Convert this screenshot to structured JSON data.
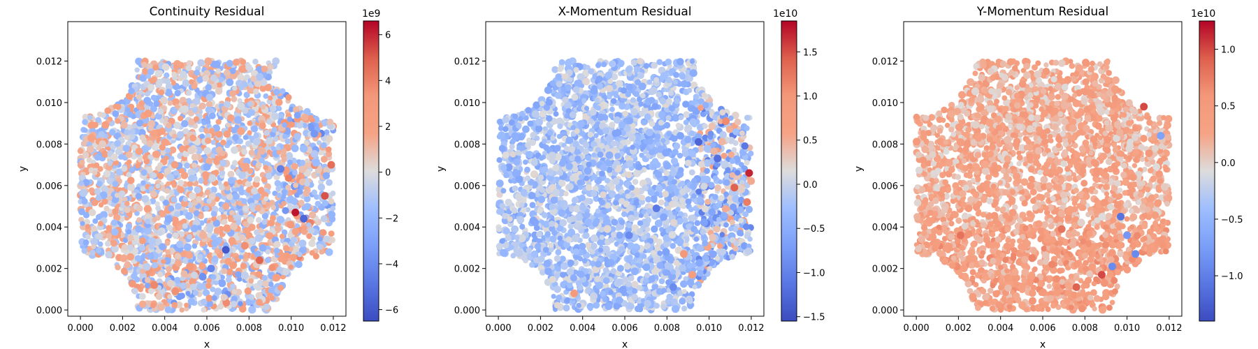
{
  "chart_data": [
    {
      "type": "scatter",
      "title": "Continuity Residual",
      "xlabel": "x",
      "ylabel": "y",
      "xlim": [
        -0.0006,
        0.0126
      ],
      "ylim": [
        -0.0003,
        0.0139
      ],
      "xticks": [
        0.0,
        0.002,
        0.004,
        0.006,
        0.008,
        0.01,
        0.012
      ],
      "xtick_labels": [
        "0.000",
        "0.002",
        "0.004",
        "0.006",
        "0.008",
        "0.010",
        "0.012"
      ],
      "yticks": [
        0.0,
        0.002,
        0.004,
        0.006,
        0.008,
        0.01,
        0.012
      ],
      "ytick_labels": [
        "0.000",
        "0.002",
        "0.004",
        "0.006",
        "0.008",
        "0.010",
        "0.012"
      ],
      "colormap": "coolwarm",
      "colorbar": {
        "vmin": -6.5,
        "vmax": 6.6,
        "offset_label": "1e9",
        "ticks": [
          -6,
          -4,
          -2,
          0,
          2,
          4,
          6
        ],
        "tick_labels": [
          "−6",
          "−4",
          "−2",
          "0",
          "2",
          "4",
          "6"
        ]
      },
      "domain": "square of side 0.012 with quarter-circle cutouts of radius ~0.0027 at the four corners",
      "field_pattern": "near-zero grey background; strongest positive/negative spots along the right and lower-right curved boundaries, reaching about +6.5e9 near (0.0102, 0.0047) and about -6e9 near (0.0069, 0.0029)",
      "points": [
        {
          "x": 0.0102,
          "y": 0.0047,
          "v": 6.3
        },
        {
          "x": 0.0069,
          "y": 0.0029,
          "v": -6.0
        },
        {
          "x": 0.0116,
          "y": 0.0055,
          "v": 5.2
        },
        {
          "x": 0.0106,
          "y": 0.0044,
          "v": -5.5
        },
        {
          "x": 0.0085,
          "y": 0.0024,
          "v": 4.8
        },
        {
          "x": 0.0062,
          "y": 0.002,
          "v": -4.2
        },
        {
          "x": 0.0119,
          "y": 0.007,
          "v": 4.5
        },
        {
          "x": 0.0095,
          "y": 0.0068,
          "v": -4.5
        },
        {
          "x": 0.0035,
          "y": 0.0012,
          "v": 3.8
        },
        {
          "x": 0.0045,
          "y": 0.0009,
          "v": 3.5
        },
        {
          "x": 0.0058,
          "y": 0.0016,
          "v": -3.8
        },
        {
          "x": 0.0111,
          "y": 0.0085,
          "v": -3.5
        },
        {
          "x": 0.0078,
          "y": 0.0031,
          "v": 3.6
        },
        {
          "x": 0.0052,
          "y": 0.0021,
          "v": 3.2
        }
      ]
    },
    {
      "type": "scatter",
      "title": "X-Momentum Residual",
      "xlabel": "x",
      "ylabel": "y",
      "xlim": [
        -0.0006,
        0.0126
      ],
      "ylim": [
        -0.0003,
        0.0139
      ],
      "xticks": [
        0.0,
        0.002,
        0.004,
        0.006,
        0.008,
        0.01,
        0.012
      ],
      "xtick_labels": [
        "0.000",
        "0.002",
        "0.004",
        "0.006",
        "0.008",
        "0.010",
        "0.012"
      ],
      "yticks": [
        0.0,
        0.002,
        0.004,
        0.006,
        0.008,
        0.01,
        0.012
      ],
      "ytick_labels": [
        "0.000",
        "0.002",
        "0.004",
        "0.006",
        "0.008",
        "0.010",
        "0.012"
      ],
      "colormap": "coolwarm",
      "colorbar": {
        "vmin": -1.55,
        "vmax": 1.85,
        "offset_label": "1e10",
        "ticks": [
          -1.5,
          -1.0,
          -0.5,
          0.0,
          0.5,
          1.0,
          1.5
        ],
        "tick_labels": [
          "−1.5",
          "−1.0",
          "−0.5",
          "0.0",
          "0.5",
          "1.0",
          "1.5"
        ]
      },
      "domain": "square of side 0.012 with quarter-circle cutouts of radius ~0.0027 at the four corners",
      "field_pattern": "mostly slightly negative (light blue) interior; strongest values near the right edge and the lower-right curved boundary, up to about +1.8e10 near (0.0119, 0.0066)",
      "points": [
        {
          "x": 0.0119,
          "y": 0.0066,
          "v": 1.7
        },
        {
          "x": 0.0112,
          "y": 0.0059,
          "v": 1.4
        },
        {
          "x": 0.0088,
          "y": 0.0027,
          "v": 1.0
        },
        {
          "x": 0.0095,
          "y": 0.0081,
          "v": -1.3
        },
        {
          "x": 0.0104,
          "y": 0.0073,
          "v": -1.2
        },
        {
          "x": 0.0118,
          "y": 0.0052,
          "v": 1.2
        },
        {
          "x": 0.0075,
          "y": 0.0049,
          "v": -1.1
        },
        {
          "x": 0.0036,
          "y": 0.0008,
          "v": 0.9
        },
        {
          "x": 0.0092,
          "y": 0.0017,
          "v": 0.8
        },
        {
          "x": 0.0083,
          "y": 0.0011,
          "v": -0.9
        },
        {
          "x": 0.0108,
          "y": 0.0091,
          "v": 1.1
        },
        {
          "x": 0.0062,
          "y": 0.0036,
          "v": -0.9
        }
      ]
    },
    {
      "type": "scatter",
      "title": "Y-Momentum Residual",
      "xlabel": "x",
      "ylabel": "y",
      "xlim": [
        -0.0006,
        0.0126
      ],
      "ylim": [
        -0.0003,
        0.0139
      ],
      "xticks": [
        0.0,
        0.002,
        0.004,
        0.006,
        0.008,
        0.01,
        0.012
      ],
      "xtick_labels": [
        "0.000",
        "0.002",
        "0.004",
        "0.006",
        "0.008",
        "0.010",
        "0.012"
      ],
      "yticks": [
        0.0,
        0.002,
        0.004,
        0.006,
        0.008,
        0.01,
        0.012
      ],
      "ytick_labels": [
        "0.000",
        "0.002",
        "0.004",
        "0.006",
        "0.008",
        "0.010",
        "0.012"
      ],
      "colormap": "coolwarm",
      "colorbar": {
        "vmin": -1.4,
        "vmax": 1.25,
        "offset_label": "1e10",
        "ticks": [
          -1.0,
          -0.5,
          0.0,
          0.5,
          1.0
        ],
        "tick_labels": [
          "−1.0",
          "−0.5",
          "0.0",
          "0.5",
          "1.0"
        ]
      },
      "domain": "square of side 0.012 with quarter-circle cutouts of radius ~0.0027 at the four corners",
      "field_pattern": "mostly slightly positive (light salmon) interior; positive band along the lower boundary reaching about +1e10 near (0.0088, 0.0017) and (0.0108, 0.0098); negative spots along the lower-right curved boundary",
      "points": [
        {
          "x": 0.0108,
          "y": 0.0098,
          "v": 1.0
        },
        {
          "x": 0.0088,
          "y": 0.0017,
          "v": 1.0
        },
        {
          "x": 0.0076,
          "y": 0.0011,
          "v": 0.9
        },
        {
          "x": 0.0097,
          "y": 0.0045,
          "v": -1.1
        },
        {
          "x": 0.0093,
          "y": 0.0021,
          "v": -0.9
        },
        {
          "x": 0.01,
          "y": 0.0036,
          "v": -0.8
        },
        {
          "x": 0.0021,
          "y": 0.0036,
          "v": 0.8
        },
        {
          "x": 0.0069,
          "y": 0.0039,
          "v": 0.8
        },
        {
          "x": 0.0116,
          "y": 0.0084,
          "v": -0.7
        },
        {
          "x": 0.0055,
          "y": 0.0025,
          "v": 0.7
        },
        {
          "x": 0.0104,
          "y": 0.0027,
          "v": -0.9
        }
      ]
    }
  ]
}
